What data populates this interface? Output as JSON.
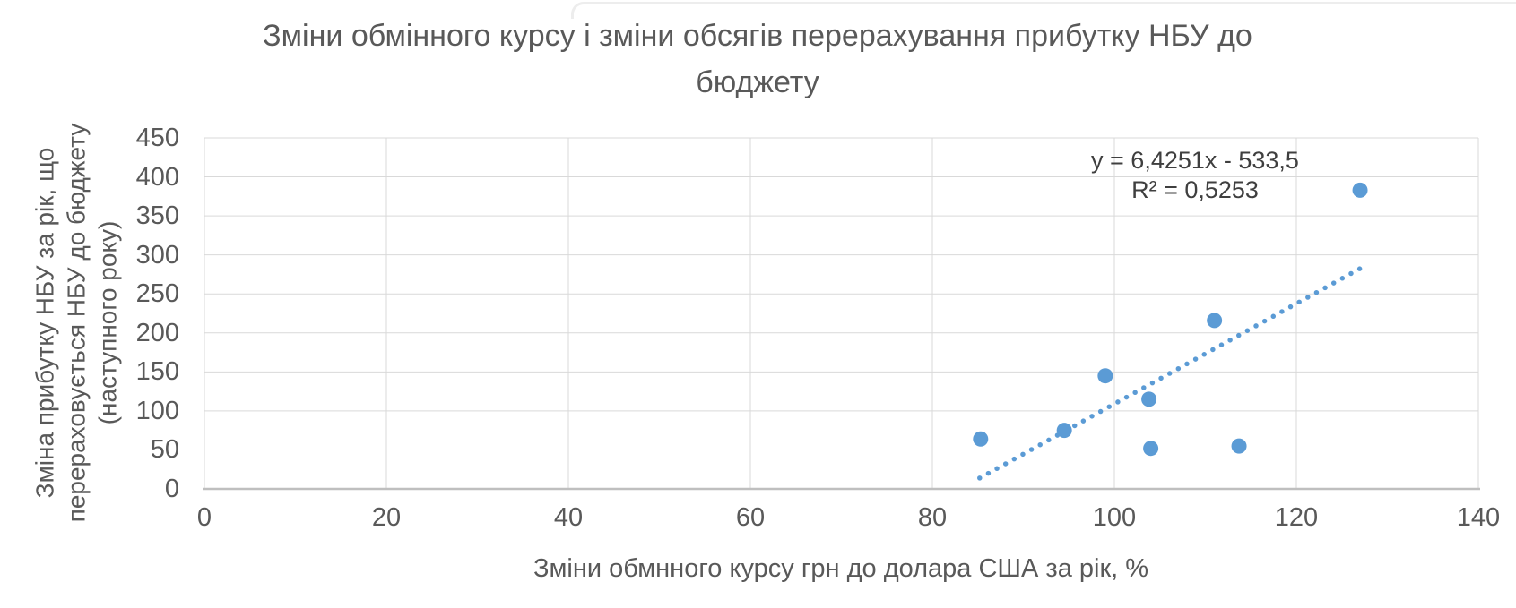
{
  "chart": {
    "title": "Зміни обмінного курсу і зміни обсягів перерахування прибутку НБУ до\nбюджету",
    "y_axis_title": "Зміна прибутку НБУ за рік, що\nперераховується НБУ до бюджету\n(наступного року)",
    "x_axis_title": "Зміни обмнного курсу грн до долара США за рік, %",
    "annotation": "y = 6,4251x - 533,5\nR² = 0,5253"
  },
  "chart_data": {
    "type": "scatter",
    "title": "Зміни обмінного курсу і зміни обсягів перерахування прибутку НБУ до бюджету",
    "xlabel": "Зміни обмнного курсу грн до долара США за рік, %",
    "ylabel": "Зміна прибутку НБУ за рік, що перераховується НБУ до бюджету (наступного року)",
    "points": [
      {
        "x": 85.3,
        "y": 64
      },
      {
        "x": 94.5,
        "y": 75
      },
      {
        "x": 99,
        "y": 145
      },
      {
        "x": 103.8,
        "y": 115
      },
      {
        "x": 104,
        "y": 52
      },
      {
        "x": 111,
        "y": 216
      },
      {
        "x": 113.7,
        "y": 55
      },
      {
        "x": 127,
        "y": 383
      }
    ],
    "xticks": [
      0,
      20,
      40,
      60,
      80,
      100,
      120,
      140
    ],
    "yticks": [
      0,
      50,
      100,
      150,
      200,
      250,
      300,
      350,
      400,
      450
    ],
    "xlim": [
      0,
      140
    ],
    "ylim": [
      0,
      450
    ],
    "grid": true,
    "legend": "none",
    "trendline": {
      "type": "linear",
      "style": "dotted",
      "slope": 6.4251,
      "intercept": -533.5,
      "x_start": 85.2,
      "x_end": 127.1,
      "equation_label": "y = 6,4251x - 533,5",
      "r_squared": 0.5253,
      "r_squared_label": "R² = 0,5253"
    },
    "colors": {
      "marker": "#5b9bd5",
      "trendline": "#5b9bd5",
      "gridline": "#d9d9d9",
      "axis_line": "#bfbfbf",
      "text": "#595959",
      "annotation_text": "#3f3f3f"
    }
  }
}
